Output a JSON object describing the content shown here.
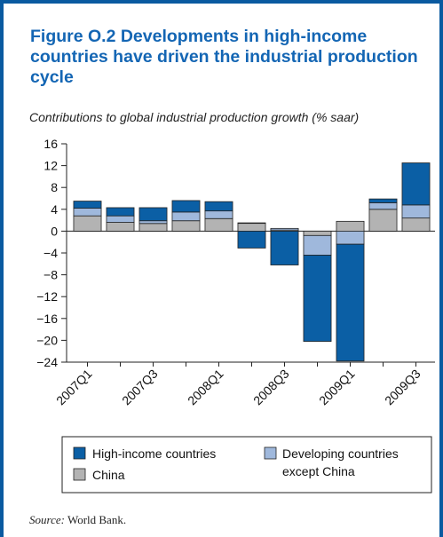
{
  "header": {
    "title": "Figure O.2  Developments in high-income countries have driven the industrial production cycle",
    "subtitle": "Contributions to global industrial production growth (% saar)"
  },
  "source": {
    "label": "Source:",
    "text": "World Bank."
  },
  "colors": {
    "frame": "#0a5aa0",
    "title": "#1466b4",
    "high_income": "#0b5fa5",
    "developing": "#9fb8dc",
    "china": "#b3b3b3"
  },
  "chart_data": {
    "type": "bar",
    "stacked": true,
    "categories": [
      "2007Q1",
      "2007Q2",
      "2007Q3",
      "2007Q4",
      "2008Q1",
      "2008Q2",
      "2008Q3",
      "2008Q4",
      "2009Q1",
      "2009Q2",
      "2009Q3"
    ],
    "tick_labels": [
      "2007Q1",
      "",
      "2007Q3",
      "",
      "2008Q1",
      "",
      "2008Q3",
      "",
      "2009Q1",
      "",
      "2009Q3"
    ],
    "yticks": [
      16,
      12,
      8,
      4,
      0,
      -4,
      -8,
      -12,
      -16,
      -20,
      -24
    ],
    "ytick_labels": [
      "16",
      "12",
      "8",
      "4",
      "0",
      "−4",
      "−8",
      "−12",
      "−16",
      "−20",
      "−24"
    ],
    "ylim": [
      -24,
      16
    ],
    "xlabel": "",
    "ylabel": "",
    "series": [
      {
        "name": "China",
        "values": [
          2.8,
          1.6,
          1.4,
          1.9,
          2.3,
          1.5,
          0.2,
          -0.8,
          1.8,
          4.0,
          2.4
        ]
      },
      {
        "name": "Developing countries except China",
        "values": [
          1.4,
          1.2,
          0.5,
          1.6,
          1.4,
          0.0,
          0.3,
          -3.6,
          -2.4,
          1.2,
          2.4
        ]
      },
      {
        "name": "High-income countries",
        "values": [
          1.3,
          1.5,
          2.4,
          2.1,
          1.7,
          -3.1,
          -6.2,
          -15.8,
          -21.4,
          0.7,
          7.7
        ]
      }
    ],
    "legend": {
      "position": "bottom",
      "entries": [
        "High-income countries",
        "Developing countries except China",
        "China"
      ]
    }
  }
}
